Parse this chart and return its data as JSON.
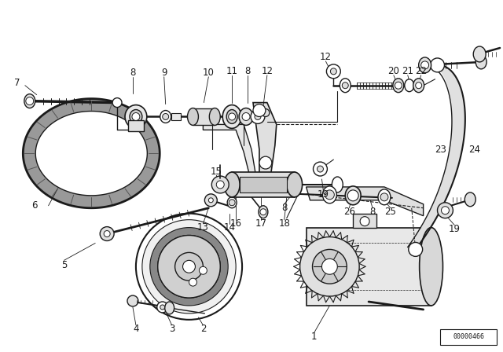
{
  "bg_color": "#ffffff",
  "line_color": "#1a1a1a",
  "part_number_ref": "00000466",
  "figsize": [
    6.4,
    4.48
  ],
  "dpi": 100
}
